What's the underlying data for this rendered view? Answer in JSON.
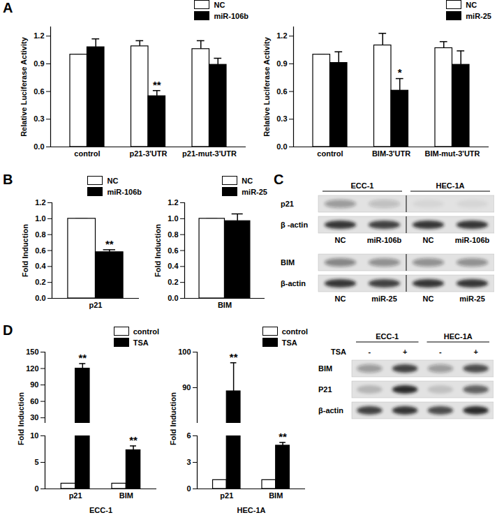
{
  "panel_labels": [
    "A",
    "B",
    "C",
    "D"
  ],
  "chart_data": [
    {
      "type": "bar",
      "ylabel": "Relative Luciferase Activity",
      "categories": [
        "control",
        "p21-3'UTR",
        "p21-mut-3'UTR"
      ],
      "series": [
        {
          "name": "NC",
          "color": "#ffffff",
          "values": [
            1.0,
            1.09,
            1.06
          ],
          "errors": [
            0,
            0.06,
            0.09
          ]
        },
        {
          "name": "miR-106b",
          "color": "#000000",
          "values": [
            1.08,
            0.55,
            0.89
          ],
          "errors": [
            0.09,
            0.06,
            0.07
          ],
          "annotations": [
            null,
            "**",
            null
          ]
        }
      ],
      "ylim": [
        0,
        1.3
      ],
      "yticks": [
        {
          "value": 0,
          "label": "0.0"
        },
        0.3,
        0.6,
        0.9,
        1.2
      ],
      "legend": "top-right"
    },
    {
      "type": "bar",
      "ylabel": "Relative Luciferase Activity",
      "categories": [
        "control",
        "BIM-3'UTR",
        "BIM-mut-3'UTR"
      ],
      "series": [
        {
          "name": "NC",
          "color": "#ffffff",
          "values": [
            1.0,
            1.1,
            1.07
          ],
          "errors": [
            0,
            0.13,
            0.07
          ]
        },
        {
          "name": "miR-25",
          "color": "#000000",
          "values": [
            0.91,
            0.61,
            0.89
          ],
          "errors": [
            0.12,
            0.13,
            0.15
          ],
          "annotations": [
            null,
            "*",
            null
          ]
        }
      ],
      "ylim": [
        0,
        1.3
      ],
      "yticks": [
        {
          "value": 0,
          "label": "0.0"
        },
        0.3,
        0.6,
        0.9,
        1.2
      ],
      "legend": "top-right"
    },
    {
      "type": "bar",
      "ylabel": "Fold Induction",
      "categories": [
        "p21"
      ],
      "series": [
        {
          "name": "NC",
          "color": "#ffffff",
          "values": [
            1.0
          ],
          "errors": [
            0
          ]
        },
        {
          "name": "miR-106b",
          "color": "#000000",
          "values": [
            0.58
          ],
          "errors": [
            0.03
          ],
          "annotations": [
            "**"
          ]
        }
      ],
      "ylim": [
        0,
        1.2
      ],
      "yticks": [
        {
          "value": 0,
          "label": "0.0"
        },
        0.2,
        0.4,
        0.6,
        0.8,
        {
          "value": 1,
          "label": "1.0"
        },
        1.2
      ],
      "legend": "top-right"
    },
    {
      "type": "bar",
      "ylabel": "Fold Induction",
      "categories": [
        "BIM"
      ],
      "series": [
        {
          "name": "NC",
          "color": "#ffffff",
          "values": [
            1.0
          ],
          "errors": [
            0
          ]
        },
        {
          "name": "miR-25",
          "color": "#000000",
          "values": [
            0.97
          ],
          "errors": [
            0.09
          ]
        }
      ],
      "ylim": [
        0,
        1.2
      ],
      "yticks": [
        {
          "value": 0,
          "label": "0.0"
        },
        0.2,
        0.4,
        0.6,
        0.8,
        {
          "value": 1,
          "label": "1.0"
        },
        1.2
      ],
      "legend": "top-right"
    },
    {
      "type": "bar",
      "ylabel": "Fold Induction",
      "xlabel": "ECC-1",
      "categories": [
        "p21",
        "BIM"
      ],
      "series": [
        {
          "name": "control",
          "color": "#ffffff",
          "values": [
            1,
            1
          ],
          "errors": [
            0,
            0
          ]
        },
        {
          "name": "TSA",
          "color": "#000000",
          "values": [
            120,
            7.3
          ],
          "errors": [
            9,
            0.8
          ],
          "annotations": [
            "**",
            "**"
          ]
        }
      ],
      "segments": [
        {
          "ylim": [
            20,
            150
          ],
          "yticks": [
            30,
            60,
            90,
            120,
            150
          ]
        },
        {
          "ylim": [
            0,
            10
          ],
          "yticks": [
            0,
            5,
            10
          ]
        }
      ],
      "legend": "top-right"
    },
    {
      "type": "bar",
      "ylabel": "Fold Induction",
      "xlabel": "HEC-1A",
      "categories": [
        "p21",
        "BIM"
      ],
      "series": [
        {
          "name": "control",
          "color": "#ffffff",
          "values": [
            1,
            1
          ],
          "errors": [
            0,
            0
          ]
        },
        {
          "name": "TSA",
          "color": "#000000",
          "values": [
            89,
            4.9
          ],
          "errors": [
            8,
            0.35
          ],
          "annotations": [
            "**",
            "**"
          ]
        }
      ],
      "segments": [
        {
          "ylim": [
            80,
            100
          ],
          "yticks": [
            90,
            100
          ]
        },
        {
          "ylim": [
            0,
            6
          ],
          "yticks": [
            0,
            3,
            6
          ]
        }
      ],
      "legend": "top-right"
    }
  ],
  "blots": [
    {
      "groups": [
        "ECC-1",
        "HEC-1A"
      ],
      "rows": [
        {
          "label": "p21",
          "bands": [
            0.35,
            0.18,
            0.05,
            0.05
          ]
        },
        {
          "label": "β -actin",
          "bands": [
            0.85,
            0.8,
            0.85,
            0.85
          ]
        }
      ],
      "lanes": [
        "NC",
        "miR-106b",
        "NC",
        "miR-106b"
      ]
    },
    {
      "rows": [
        {
          "label": "BIM",
          "bands": [
            0.45,
            0.4,
            0.4,
            0.4
          ]
        },
        {
          "label": "β-actin",
          "bands": [
            0.85,
            0.8,
            0.85,
            0.85
          ]
        }
      ],
      "lanes": [
        "NC",
        "miR-25",
        "NC",
        "miR-25"
      ]
    },
    {
      "groups": [
        "ECC-1",
        "HEC-1A"
      ],
      "lane_header": "TSA",
      "lanes": [
        "-",
        "+",
        "-",
        "+"
      ],
      "rows": [
        {
          "label": "BIM",
          "bands": [
            0.35,
            0.8,
            0.35,
            0.75
          ]
        },
        {
          "label": "P21",
          "bands": [
            0.2,
            0.9,
            0.15,
            0.65
          ]
        },
        {
          "label": "β-actin",
          "bands": [
            0.8,
            0.85,
            0.75,
            0.9
          ]
        }
      ]
    }
  ]
}
